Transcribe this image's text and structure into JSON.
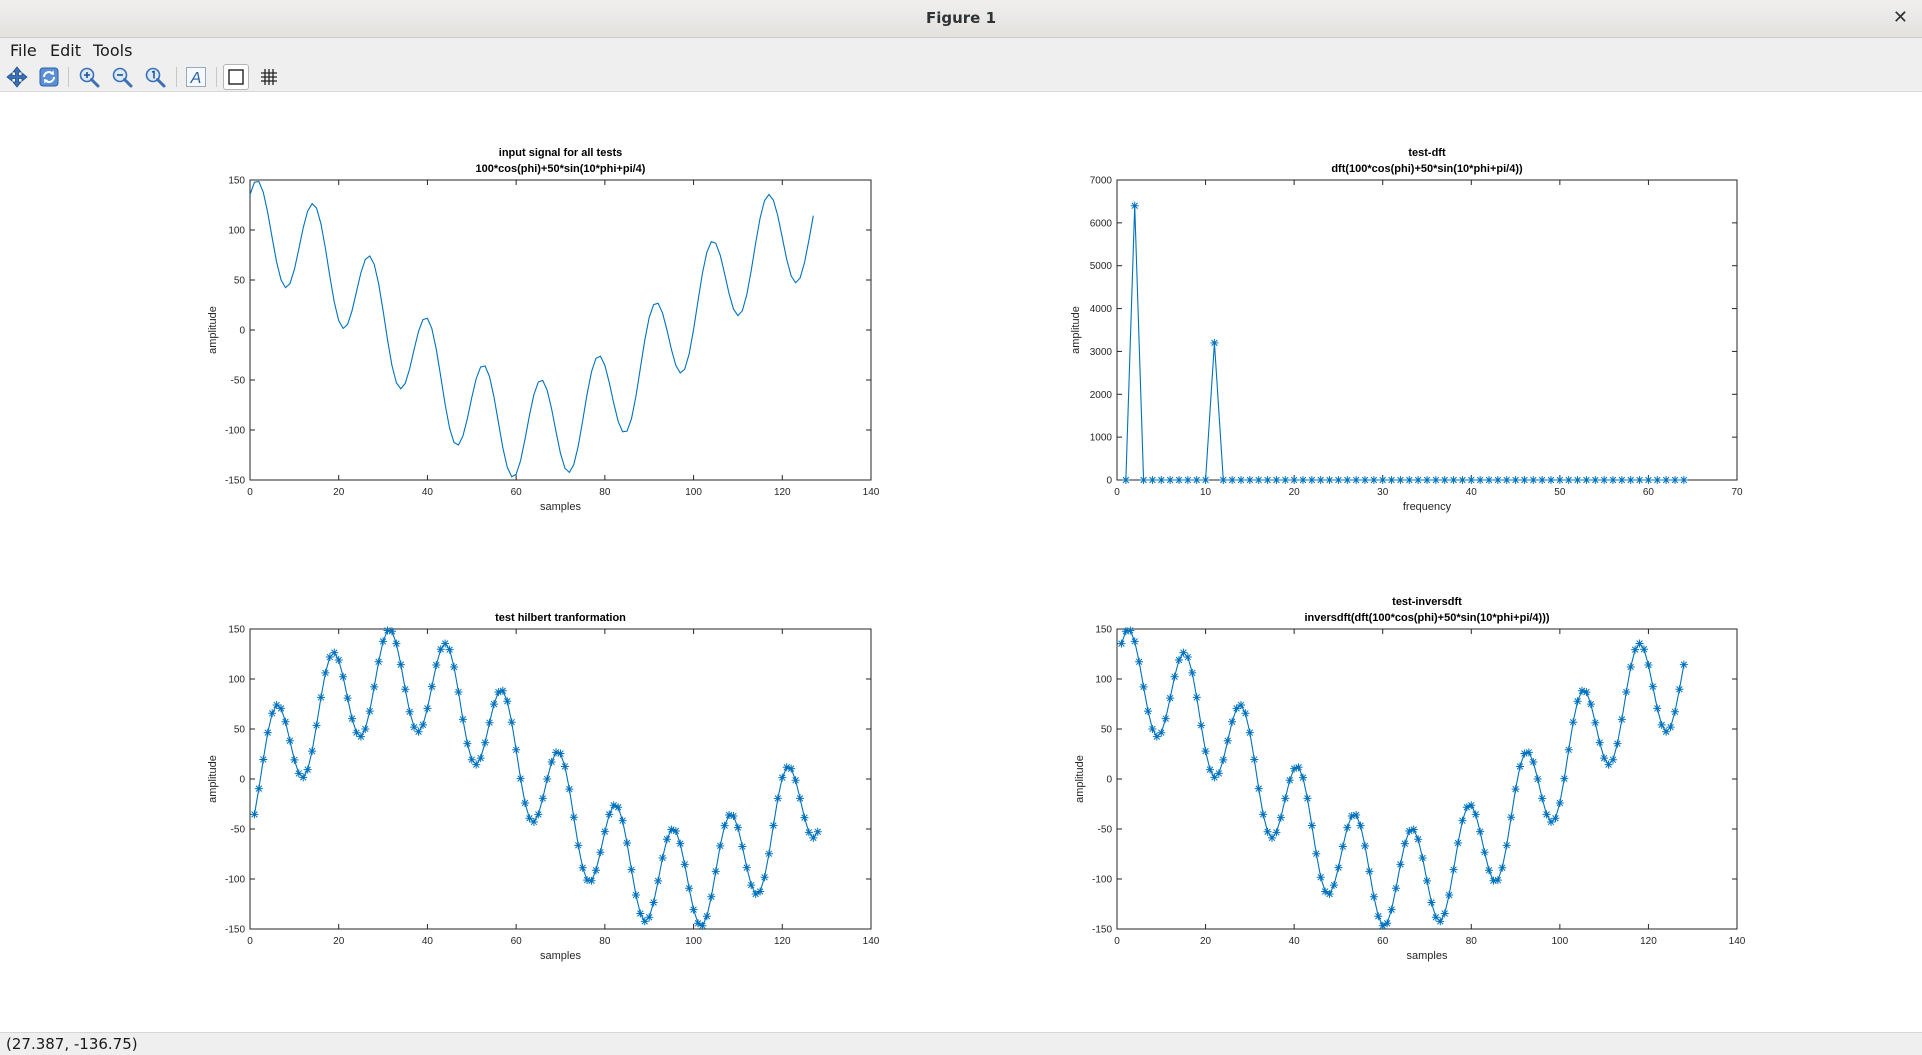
{
  "window": {
    "title": "Figure 1"
  },
  "menu": {
    "items": [
      "File",
      "Edit",
      "Tools"
    ]
  },
  "toolbar": {
    "buttons": [
      "pan-icon",
      "rotate-icon",
      "zoom-in-icon",
      "zoom-out-icon",
      "zoom-reset-icon",
      "text-insert-icon",
      "axes-box-toggle-icon",
      "grid-toggle-icon"
    ]
  },
  "status": {
    "coordinates": "(27.387, -136.75)"
  },
  "colors": {
    "series": "#0072bd",
    "axis": "#262626"
  },
  "chart_data": [
    {
      "type": "line",
      "title": [
        "input signal for all tests",
        "100*cos(phi)+50*sin(10*phi+pi/4)"
      ],
      "xlabel": "samples",
      "ylabel": "amplitude",
      "xlim": [
        0,
        140
      ],
      "ylim": [
        -150,
        150
      ],
      "xticks": [
        0,
        20,
        40,
        60,
        80,
        100,
        120,
        140
      ],
      "yticks": [
        -150,
        -100,
        -50,
        0,
        50,
        100,
        150
      ],
      "marker": "none",
      "series": [
        {
          "x": {
            "from": 0,
            "to": 127
          },
          "formula": "100*cos(2*pi*n/128)+50*sin(10*2*pi*n/128+pi/4)"
        }
      ]
    },
    {
      "type": "line",
      "title": [
        "test-dft",
        "dft(100*cos(phi)+50*sin(10*phi+pi/4))"
      ],
      "xlabel": "frequency",
      "ylabel": "amplitude",
      "xlim": [
        0,
        70
      ],
      "ylim": [
        0,
        7000
      ],
      "xticks": [
        0,
        10,
        20,
        30,
        40,
        50,
        60,
        70
      ],
      "yticks": [
        0,
        1000,
        2000,
        3000,
        4000,
        5000,
        6000,
        7000
      ],
      "marker": "*",
      "series": [
        {
          "x": {
            "from": 1,
            "to": 64
          },
          "nonzero": [
            {
              "x": 2,
              "y": 6400
            },
            {
              "x": 11,
              "y": 3200
            }
          ],
          "baseline": 0
        }
      ]
    },
    {
      "type": "line",
      "title": [
        "test hilbert tranformation"
      ],
      "xlabel": "samples",
      "ylabel": "amplitude",
      "xlim": [
        0,
        140
      ],
      "ylim": [
        -150,
        150
      ],
      "xticks": [
        0,
        20,
        40,
        60,
        80,
        100,
        120,
        140
      ],
      "yticks": [
        -150,
        -100,
        -50,
        0,
        50,
        100,
        150
      ],
      "marker": "*",
      "series": [
        {
          "x": {
            "from": 1,
            "to": 128
          },
          "formula": "100*sin(2*pi*(n-1)/128)-50*cos(10*2*pi*(n-1)/128+pi/4)"
        }
      ]
    },
    {
      "type": "line",
      "title": [
        "test-inversdft",
        "inversdft(dft(100*cos(phi)+50*sin(10*phi+pi/4)))"
      ],
      "xlabel": "samples",
      "ylabel": "amplitude",
      "xlim": [
        0,
        140
      ],
      "ylim": [
        -150,
        150
      ],
      "xticks": [
        0,
        20,
        40,
        60,
        80,
        100,
        120,
        140
      ],
      "yticks": [
        -150,
        -100,
        -50,
        0,
        50,
        100,
        150
      ],
      "marker": "*",
      "series": [
        {
          "x": {
            "from": 1,
            "to": 128
          },
          "formula": "100*cos(2*pi*(n-1)/128)+50*sin(10*2*pi*(n-1)/128+pi/4)"
        }
      ]
    }
  ]
}
